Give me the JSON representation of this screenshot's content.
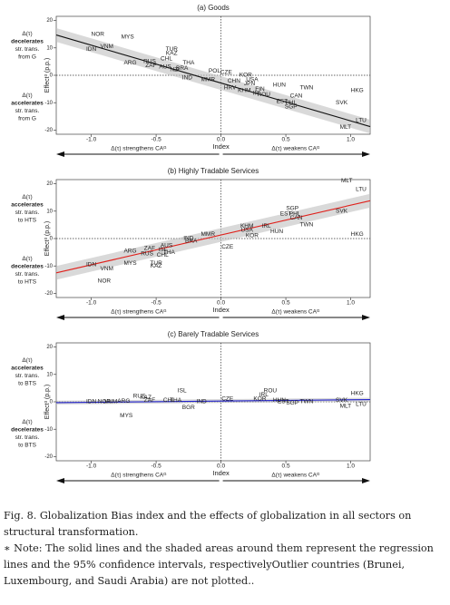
{
  "chart_data": [
    {
      "type": "scatter",
      "title": "(a) Goods",
      "color": "#111111",
      "x_label": "Index",
      "y_label": "Effect³ (p.p.)",
      "arrow_left": "Δ(τ) strengthens CAᴳ",
      "arrow_right": "Δ(τ) weakens CAᴳ",
      "upper_note": [
        "Δ(τ)",
        "decelerates",
        "str. trans.",
        "from G"
      ],
      "lower_note": [
        "Δ(τ)",
        "accelerates",
        "str. trans.",
        "from G"
      ],
      "xlim": [
        -1.27,
        1.15
      ],
      "ylim": [
        -21.5,
        21.5
      ],
      "xticks": [
        {
          "value": -1,
          "label": "-1.0"
        },
        {
          "value": -0.5,
          "label": "-0.5"
        },
        {
          "value": 0,
          "label": "0.0"
        },
        {
          "value": 0.5,
          "label": "0.5"
        },
        {
          "value": 1,
          "label": "1.0"
        }
      ],
      "yticks": [
        20,
        10,
        0,
        -10,
        -20
      ],
      "labels": [
        "NOR",
        "MYS",
        "VNM",
        "IDN",
        "ARG",
        "RUS",
        "ZAF",
        "TUR",
        "KAZ",
        "CHL",
        "THA",
        "AUS",
        "NZL",
        "IND",
        "MMR",
        "BRA",
        "CZE",
        "POL",
        "KOR",
        "USA",
        "JPN",
        "CHN",
        "HRV",
        "KHM",
        "FIN",
        "HUN",
        "IRL",
        "ROU",
        "TWN",
        "CAN",
        "EST",
        "PHL",
        "SGP",
        "SVK",
        "HKG",
        "MLT",
        "LTU"
      ],
      "x": [
        -0.95,
        -0.72,
        -0.88,
        -1.0,
        -0.7,
        -0.55,
        -0.54,
        -0.38,
        -0.38,
        -0.42,
        -0.25,
        -0.43,
        -0.35,
        -0.26,
        -0.1,
        -0.3,
        0.04,
        -0.05,
        0.19,
        0.24,
        0.22,
        0.1,
        0.07,
        0.18,
        0.3,
        0.45,
        0.28,
        0.33,
        0.66,
        0.58,
        0.47,
        0.54,
        0.54,
        0.93,
        1.05,
        0.96,
        1.08
      ],
      "values": [
        15,
        14,
        10.5,
        9.5,
        4.5,
        5,
        3.5,
        9.5,
        8,
        6,
        4.5,
        3,
        2,
        -1,
        -1.5,
        2.5,
        1,
        1.5,
        0,
        -1.5,
        -3,
        -2,
        -4.5,
        -5.5,
        -5,
        -3.5,
        -6.5,
        -7,
        -4.5,
        -7.5,
        -9.5,
        -10,
        -11.5,
        -10,
        -5.5,
        -19,
        -16.5
      ],
      "fit": {
        "x": [
          -1.27,
          1.15
        ],
        "y": [
          14.7,
          -18.7
        ],
        "ci_lower": [
          12.2,
          -21.2
        ],
        "ci_upper": [
          17.2,
          -16.2
        ]
      }
    },
    {
      "type": "scatter",
      "title": "(b) Highly Tradable Services",
      "color": "#e0201b",
      "x_label": "Index",
      "y_label": "Effect³ (p.p.)",
      "arrow_left": "Δ(τ) strengthens CAᴳ",
      "arrow_right": "Δ(τ) weakens CAᴳ",
      "upper_note": [
        "Δ(τ)",
        "accelerates",
        "str. trans.",
        "to HTS"
      ],
      "lower_note": [
        "Δ(τ)",
        "decelerates",
        "str. trans.",
        "to HTS"
      ],
      "xlim": [
        -1.27,
        1.15
      ],
      "ylim": [
        -21.5,
        21.5
      ],
      "xticks": [
        {
          "value": -1,
          "label": "-1.0"
        },
        {
          "value": -0.5,
          "label": "-0.5"
        },
        {
          "value": 0,
          "label": "0.0"
        },
        {
          "value": 0.5,
          "label": "0.5"
        },
        {
          "value": 1,
          "label": "1.0"
        }
      ],
      "yticks": [
        20,
        10,
        0,
        -10,
        -20
      ],
      "labels": [
        "IDN",
        "VNM",
        "NOR",
        "MYS",
        "ARG",
        "ZAF",
        "RUS",
        "TUR",
        "KAZ",
        "AUS",
        "CHL",
        "THA",
        "ISL",
        "IND",
        "MMR",
        "BRA",
        "CZE",
        "KHM",
        "KOR",
        "USA",
        "HUN",
        "IRL",
        "SGP",
        "EST",
        "PHL",
        "CAN",
        "TWN",
        "SVK",
        "HKG",
        "MLT",
        "LTU"
      ],
      "x": [
        -1.0,
        -0.88,
        -0.9,
        -0.7,
        -0.7,
        -0.55,
        -0.57,
        -0.5,
        -0.5,
        -0.42,
        -0.45,
        -0.4,
        -0.45,
        -0.25,
        -0.1,
        -0.23,
        0.05,
        0.2,
        0.24,
        0.2,
        0.43,
        0.35,
        0.55,
        0.5,
        0.57,
        0.58,
        0.66,
        0.93,
        1.05,
        0.97,
        1.08
      ],
      "values": [
        -9.5,
        -11,
        -15.5,
        -9,
        -4.5,
        -3.5,
        -5.5,
        -9,
        -10,
        -2.5,
        -6,
        -5,
        -4,
        0,
        1.5,
        -1,
        -3,
        4.5,
        1,
        3,
        2.5,
        4.5,
        11,
        9,
        9,
        7.5,
        5,
        10,
        1.5,
        21,
        18
      ],
      "fit": {
        "x": [
          -1.27,
          1.15
        ],
        "y": [
          -12.5,
          13.8
        ],
        "ci_lower": [
          -15,
          11.3
        ],
        "ci_upper": [
          -10,
          16.3
        ]
      }
    },
    {
      "type": "scatter",
      "title": "(c) Barely Tradable Services",
      "color": "#2424cc",
      "x_label": "Index",
      "y_label": "Effect³ (p.p.)",
      "arrow_left": "Δ(τ) strengthens CAᴳ",
      "arrow_right": "Δ(τ) weakens CAᴳ",
      "upper_note": [
        "Δ(τ)",
        "accelerates",
        "str. trans.",
        "to BTS"
      ],
      "lower_note": [
        "Δ(τ)",
        "decelerates",
        "str. trans.",
        "to BTS"
      ],
      "xlim": [
        -1.27,
        1.15
      ],
      "ylim": [
        -21.5,
        21.5
      ],
      "xticks": [
        {
          "value": -1,
          "label": "-1.0"
        },
        {
          "value": -0.5,
          "label": "-0.5"
        },
        {
          "value": 0,
          "label": "0.0"
        },
        {
          "value": 0.5,
          "label": "0.5"
        },
        {
          "value": 1,
          "label": "1.0"
        }
      ],
      "yticks": [
        20,
        10,
        0,
        -10,
        -20
      ],
      "labels": [
        "IDN",
        "NOR",
        "VNM",
        "MYS",
        "ARG",
        "RUS",
        "KAZ",
        "ZAF",
        "ISL",
        "BGR",
        "CHL",
        "THA",
        "IND",
        "CZE",
        "KOR",
        "ROU",
        "IRL",
        "HUN",
        "SGP",
        "TWN",
        "EST",
        "SVK",
        "HKG",
        "MLT",
        "LTU"
      ],
      "x": [
        -1.0,
        -0.9,
        -0.85,
        -0.73,
        -0.75,
        -0.63,
        -0.58,
        -0.55,
        -0.3,
        -0.25,
        -0.4,
        -0.35,
        -0.15,
        0.05,
        0.3,
        0.38,
        0.33,
        0.45,
        0.55,
        0.66,
        0.48,
        0.93,
        1.05,
        0.96,
        1.08
      ],
      "values": [
        0,
        0,
        0,
        -5,
        0.3,
        2,
        1.5,
        0.5,
        4,
        -2,
        0.5,
        0.5,
        0,
        1,
        1,
        4,
        2.5,
        0.5,
        -0.5,
        0,
        0,
        0.5,
        3,
        -1.5,
        -1
      ],
      "fit": {
        "x": [
          -1.27,
          1.15
        ],
        "y": [
          -0.3,
          0.8
        ],
        "ci_lower": [
          -1,
          0.1
        ],
        "ci_upper": [
          0.4,
          1.5
        ]
      }
    }
  ],
  "caption": {
    "figure": "Fig. 8. Globalization Bias index and the effects of globalization in all sectors on structural transformation.",
    "note": "∗ Note: The solid lines and the shaded areas around them represent the regression lines and the 95% confidence intervals, respectivelyOutlier countries (Brunei, Luxembourg, and Saudi Arabia) are not plotted.."
  }
}
